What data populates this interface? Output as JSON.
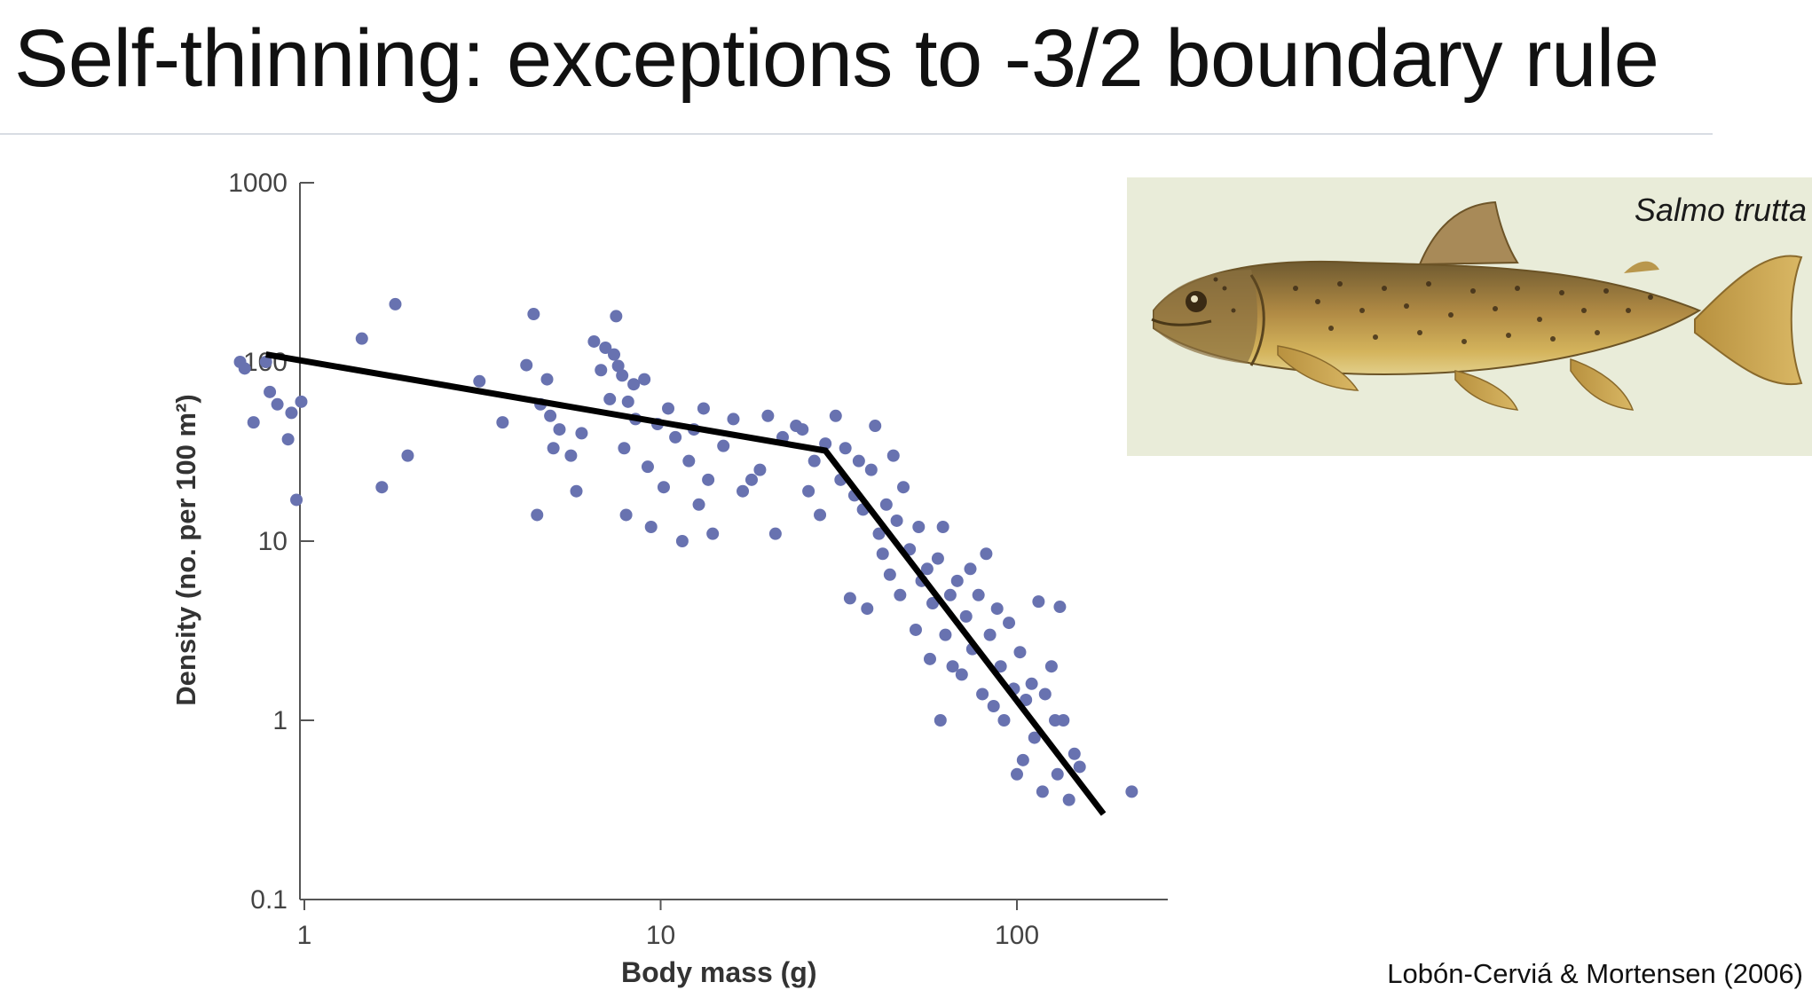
{
  "slide": {
    "title": "Self-thinning: exceptions to -3/2 boundary rule",
    "citation": "Lobón-Cerviá & Mortensen (2006)"
  },
  "image_panel": {
    "species_label": "Salmo trutta",
    "icon": "brown-trout-illustration"
  },
  "colors": {
    "points": "#6872b0",
    "fit_line": "#000000",
    "axis": "#555555"
  },
  "chart_data": {
    "type": "scatter",
    "xlabel": "Body mass (g)",
    "ylabel": "Density (no. per 100 m²)",
    "x_scale": "log",
    "y_scale": "log",
    "xlim": [
      0.5,
      300
    ],
    "ylim": [
      0.1,
      1000
    ],
    "x_ticks": [
      {
        "value": 1,
        "label": "1"
      },
      {
        "value": 10,
        "label": "10"
      },
      {
        "value": 100,
        "label": "100"
      }
    ],
    "y_ticks": [
      {
        "value": 0.1,
        "label": "0.1"
      },
      {
        "value": 1,
        "label": "1"
      },
      {
        "value": 10,
        "label": "10"
      },
      {
        "value": 100,
        "label": "100"
      },
      {
        "value": 1000,
        "label": "1000"
      }
    ],
    "grid": false,
    "points": [
      [
        0.66,
        100
      ],
      [
        0.68,
        92
      ],
      [
        0.72,
        46
      ],
      [
        0.78,
        100
      ],
      [
        0.8,
        68
      ],
      [
        0.84,
        58
      ],
      [
        0.9,
        37
      ],
      [
        0.92,
        52
      ],
      [
        0.95,
        17
      ],
      [
        0.98,
        60
      ],
      [
        1.45,
        135
      ],
      [
        1.65,
        20
      ],
      [
        1.8,
        210
      ],
      [
        1.95,
        30
      ],
      [
        3.1,
        78
      ],
      [
        3.6,
        46
      ],
      [
        4.2,
        96
      ],
      [
        4.4,
        185
      ],
      [
        4.5,
        14
      ],
      [
        4.6,
        58
      ],
      [
        4.8,
        80
      ],
      [
        4.9,
        50
      ],
      [
        5.0,
        33
      ],
      [
        5.2,
        42
      ],
      [
        5.6,
        30
      ],
      [
        5.8,
        19
      ],
      [
        6.0,
        40
      ],
      [
        6.5,
        130
      ],
      [
        6.8,
        90
      ],
      [
        7.0,
        120
      ],
      [
        7.2,
        62
      ],
      [
        7.4,
        110
      ],
      [
        7.5,
        180
      ],
      [
        7.6,
        95
      ],
      [
        7.8,
        84
      ],
      [
        7.9,
        33
      ],
      [
        8.0,
        14
      ],
      [
        8.1,
        60
      ],
      [
        8.4,
        75
      ],
      [
        8.5,
        48
      ],
      [
        9.0,
        80
      ],
      [
        9.2,
        26
      ],
      [
        9.4,
        12
      ],
      [
        9.8,
        45
      ],
      [
        10.2,
        20
      ],
      [
        10.5,
        55
      ],
      [
        11.0,
        38
      ],
      [
        11.5,
        10
      ],
      [
        12.0,
        28
      ],
      [
        12.4,
        42
      ],
      [
        12.8,
        16
      ],
      [
        13.2,
        55
      ],
      [
        13.6,
        22
      ],
      [
        14.0,
        11
      ],
      [
        15.0,
        34
      ],
      [
        16.0,
        48
      ],
      [
        17.0,
        19
      ],
      [
        18.0,
        22
      ],
      [
        19.0,
        25
      ],
      [
        20.0,
        50
      ],
      [
        21.0,
        11
      ],
      [
        22.0,
        38
      ],
      [
        24.0,
        44
      ],
      [
        25.0,
        42
      ],
      [
        26.0,
        19
      ],
      [
        27.0,
        28
      ],
      [
        28.0,
        14
      ],
      [
        29.0,
        35
      ],
      [
        31.0,
        50
      ],
      [
        32.0,
        22
      ],
      [
        33.0,
        33
      ],
      [
        34.0,
        4.8
      ],
      [
        35.0,
        18
      ],
      [
        36.0,
        28
      ],
      [
        37.0,
        15
      ],
      [
        38.0,
        4.2
      ],
      [
        39.0,
        25
      ],
      [
        40.0,
        44
      ],
      [
        41.0,
        11
      ],
      [
        42.0,
        8.5
      ],
      [
        43.0,
        16
      ],
      [
        44.0,
        6.5
      ],
      [
        45.0,
        30
      ],
      [
        46.0,
        13
      ],
      [
        47.0,
        5
      ],
      [
        48.0,
        20
      ],
      [
        50.0,
        9
      ],
      [
        52.0,
        3.2
      ],
      [
        53.0,
        12
      ],
      [
        54.0,
        6
      ],
      [
        56.0,
        7
      ],
      [
        57.0,
        2.2
      ],
      [
        58.0,
        4.5
      ],
      [
        60.0,
        8
      ],
      [
        61.0,
        1.0
      ],
      [
        62.0,
        12
      ],
      [
        63.0,
        3
      ],
      [
        65.0,
        5
      ],
      [
        66.0,
        2
      ],
      [
        68.0,
        6
      ],
      [
        70.0,
        1.8
      ],
      [
        72.0,
        3.8
      ],
      [
        74.0,
        7
      ],
      [
        75.0,
        2.5
      ],
      [
        78.0,
        5
      ],
      [
        80.0,
        1.4
      ],
      [
        82.0,
        8.5
      ],
      [
        84.0,
        3
      ],
      [
        86.0,
        1.2
      ],
      [
        88.0,
        4.2
      ],
      [
        90.0,
        2
      ],
      [
        92.0,
        1.0
      ],
      [
        95.0,
        3.5
      ],
      [
        98.0,
        1.5
      ],
      [
        100.0,
        0.5
      ],
      [
        102.0,
        2.4
      ],
      [
        104.0,
        0.6
      ],
      [
        106.0,
        1.3
      ],
      [
        110.0,
        1.6
      ],
      [
        112.0,
        0.8
      ],
      [
        115.0,
        4.6
      ],
      [
        118.0,
        0.4
      ],
      [
        120.0,
        1.4
      ],
      [
        125.0,
        2
      ],
      [
        128.0,
        1.0
      ],
      [
        130.0,
        0.5
      ],
      [
        132.0,
        4.3
      ],
      [
        135.0,
        1.0
      ],
      [
        140.0,
        0.36
      ],
      [
        145.0,
        0.65
      ],
      [
        150.0,
        0.55
      ],
      [
        210.0,
        0.4
      ]
    ],
    "fit_line": [
      [
        0.78,
        110
      ],
      [
        29.0,
        32
      ],
      [
        175.0,
        0.3
      ]
    ]
  }
}
